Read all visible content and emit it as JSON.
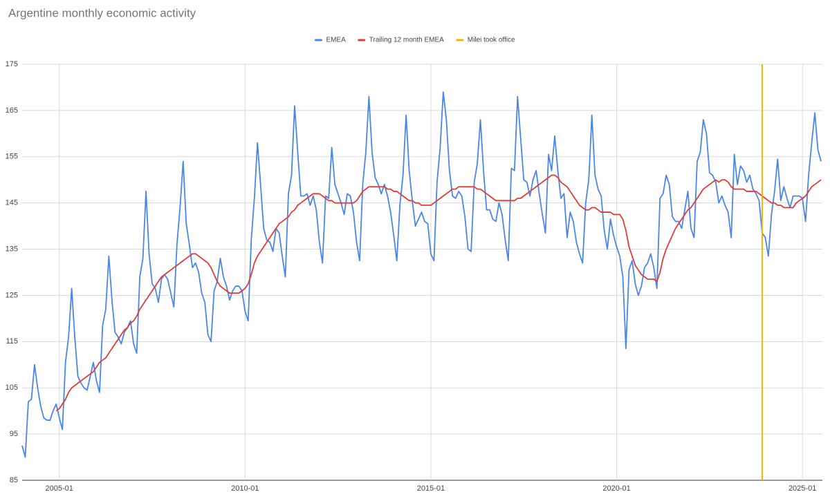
{
  "chart_data": {
    "type": "line",
    "title": "Argentine monthly economic activity",
    "x": [
      "2004-01",
      "2004-02",
      "2004-03",
      "2004-04",
      "2004-05",
      "2004-06",
      "2004-07",
      "2004-08",
      "2004-09",
      "2004-10",
      "2004-11",
      "2004-12",
      "2005-01",
      "2005-02",
      "2005-03",
      "2005-04",
      "2005-05",
      "2005-06",
      "2005-07",
      "2005-08",
      "2005-09",
      "2005-10",
      "2005-11",
      "2005-12",
      "2006-01",
      "2006-02",
      "2006-03",
      "2006-04",
      "2006-05",
      "2006-06",
      "2006-07",
      "2006-08",
      "2006-09",
      "2006-10",
      "2006-11",
      "2006-12",
      "2007-01",
      "2007-02",
      "2007-03",
      "2007-04",
      "2007-05",
      "2007-06",
      "2007-07",
      "2007-08",
      "2007-09",
      "2007-10",
      "2007-11",
      "2007-12",
      "2008-01",
      "2008-02",
      "2008-03",
      "2008-04",
      "2008-05",
      "2008-06",
      "2008-07",
      "2008-08",
      "2008-09",
      "2008-10",
      "2008-11",
      "2008-12",
      "2009-01",
      "2009-02",
      "2009-03",
      "2009-04",
      "2009-05",
      "2009-06",
      "2009-07",
      "2009-08",
      "2009-09",
      "2009-10",
      "2009-11",
      "2009-12",
      "2010-01",
      "2010-02",
      "2010-03",
      "2010-04",
      "2010-05",
      "2010-06",
      "2010-07",
      "2010-08",
      "2010-09",
      "2010-10",
      "2010-11",
      "2010-12",
      "2011-01",
      "2011-02",
      "2011-03",
      "2011-04",
      "2011-05",
      "2011-06",
      "2011-07",
      "2011-08",
      "2011-09",
      "2011-10",
      "2011-11",
      "2011-12",
      "2012-01",
      "2012-02",
      "2012-03",
      "2012-04",
      "2012-05",
      "2012-06",
      "2012-07",
      "2012-08",
      "2012-09",
      "2012-10",
      "2012-11",
      "2012-12",
      "2013-01",
      "2013-02",
      "2013-03",
      "2013-04",
      "2013-05",
      "2013-06",
      "2013-07",
      "2013-08",
      "2013-09",
      "2013-10",
      "2013-11",
      "2013-12",
      "2014-01",
      "2014-02",
      "2014-03",
      "2014-04",
      "2014-05",
      "2014-06",
      "2014-07",
      "2014-08",
      "2014-09",
      "2014-10",
      "2014-11",
      "2014-12",
      "2015-01",
      "2015-02",
      "2015-03",
      "2015-04",
      "2015-05",
      "2015-06",
      "2015-07",
      "2015-08",
      "2015-09",
      "2015-10",
      "2015-11",
      "2015-12",
      "2016-01",
      "2016-02",
      "2016-03",
      "2016-04",
      "2016-05",
      "2016-06",
      "2016-07",
      "2016-08",
      "2016-09",
      "2016-10",
      "2016-11",
      "2016-12",
      "2017-01",
      "2017-02",
      "2017-03",
      "2017-04",
      "2017-05",
      "2017-06",
      "2017-07",
      "2017-08",
      "2017-09",
      "2017-10",
      "2017-11",
      "2017-12",
      "2018-01",
      "2018-02",
      "2018-03",
      "2018-04",
      "2018-05",
      "2018-06",
      "2018-07",
      "2018-08",
      "2018-09",
      "2018-10",
      "2018-11",
      "2018-12",
      "2019-01",
      "2019-02",
      "2019-03",
      "2019-04",
      "2019-05",
      "2019-06",
      "2019-07",
      "2019-08",
      "2019-09",
      "2019-10",
      "2019-11",
      "2019-12",
      "2020-01",
      "2020-02",
      "2020-03",
      "2020-04",
      "2020-05",
      "2020-06",
      "2020-07",
      "2020-08",
      "2020-09",
      "2020-10",
      "2020-11",
      "2020-12",
      "2021-01",
      "2021-02",
      "2021-03",
      "2021-04",
      "2021-05",
      "2021-06",
      "2021-07",
      "2021-08",
      "2021-09",
      "2021-10",
      "2021-11",
      "2021-12",
      "2022-01",
      "2022-02",
      "2022-03",
      "2022-04",
      "2022-05",
      "2022-06",
      "2022-07",
      "2022-08",
      "2022-09",
      "2022-10",
      "2022-11",
      "2022-12",
      "2023-01",
      "2023-02",
      "2023-03",
      "2023-04",
      "2023-05",
      "2023-06",
      "2023-07",
      "2023-08",
      "2023-09",
      "2023-10",
      "2023-11",
      "2023-12",
      "2024-01",
      "2024-02",
      "2024-03",
      "2024-04",
      "2024-05",
      "2024-06",
      "2024-07",
      "2024-08",
      "2024-09",
      "2024-10",
      "2024-11",
      "2024-12",
      "2025-01",
      "2025-02",
      "2025-03",
      "2025-04",
      "2025-05",
      "2025-06",
      "2025-07"
    ],
    "series": [
      {
        "name": "EMEA",
        "color": "#4a86e8",
        "values": [
          92.5,
          90,
          102,
          102.5,
          110,
          105,
          101,
          98.5,
          98,
          98,
          100,
          101.5,
          98.5,
          96,
          110.5,
          116,
          126.5,
          116,
          107.5,
          106,
          105,
          104.5,
          107.5,
          110.5,
          106.5,
          104,
          118.5,
          122,
          133.5,
          124,
          117,
          116,
          114.5,
          117,
          118,
          119.5,
          114.5,
          112.5,
          129,
          133,
          147.5,
          134,
          127.5,
          126.5,
          123.5,
          128.5,
          129.5,
          128.5,
          125.5,
          122.5,
          136,
          144,
          154,
          140.5,
          136,
          131,
          132,
          130,
          125.5,
          123.5,
          116.5,
          115,
          126,
          128,
          133,
          129,
          127,
          124,
          126,
          127,
          127,
          126,
          121.5,
          119.5,
          137,
          146,
          158,
          149,
          139.5,
          137,
          136.5,
          134.5,
          139.5,
          138.5,
          133.5,
          129,
          147,
          151,
          166,
          156,
          146.5,
          146.5,
          147,
          144.5,
          146.5,
          143.5,
          136.5,
          132,
          146.5,
          146,
          157,
          149,
          147,
          145,
          142.5,
          147,
          146.5,
          143,
          136.5,
          132.5,
          149,
          156,
          168,
          156,
          150.5,
          149,
          147,
          149,
          146.5,
          143,
          138,
          132.5,
          144.5,
          151,
          164,
          152,
          145.5,
          140,
          141.5,
          143,
          141,
          140.5,
          134,
          132.5,
          149.5,
          157,
          169,
          163,
          152,
          146.5,
          146,
          147.5,
          146.5,
          142,
          135,
          134.5,
          149.5,
          153.5,
          163,
          152,
          143.5,
          143.5,
          141.5,
          141,
          145,
          142.5,
          137,
          132.5,
          152.5,
          152,
          168,
          159,
          150,
          149.5,
          146.5,
          150,
          152,
          147,
          142.5,
          138.5,
          155.5,
          152,
          159.5,
          152,
          146,
          147,
          137.5,
          143,
          141,
          136.5,
          134,
          132,
          145,
          150,
          164,
          151,
          148,
          146.5,
          139,
          135,
          141.5,
          138,
          135.5,
          133.5,
          129,
          113.5,
          130.5,
          132.5,
          127.5,
          125,
          127,
          131,
          132,
          134,
          131,
          126.5,
          146,
          147,
          151,
          149,
          142,
          141,
          141,
          139.5,
          143.5,
          147.5,
          139.5,
          137.5,
          154,
          156,
          163,
          160,
          151.5,
          151,
          149.5,
          145,
          146.5,
          144.5,
          143,
          137.5,
          155.5,
          149,
          153,
          152,
          149.5,
          151,
          148,
          147,
          145.5,
          138.5,
          137.5,
          133.5,
          142.5,
          147.5,
          154.5,
          145.5,
          148.5,
          146,
          144,
          146.5,
          146.5,
          146.5,
          146,
          141,
          151,
          158,
          164.5,
          156.5,
          154
        ]
      },
      {
        "name": "Trailing 12 month EMEA",
        "color": "#e53935",
        "values": [
          null,
          null,
          null,
          null,
          null,
          null,
          null,
          null,
          null,
          null,
          null,
          100,
          100.5,
          101.5,
          102.5,
          104,
          105,
          105.5,
          106,
          106.5,
          107,
          107.5,
          108,
          108.5,
          109.5,
          110.5,
          111,
          111.5,
          112.5,
          113.5,
          114.5,
          115.5,
          116.5,
          117.5,
          118,
          119,
          119.5,
          120.5,
          122,
          123,
          124,
          125,
          126,
          127,
          128,
          129,
          129.5,
          130,
          130.5,
          131,
          131.5,
          132,
          132.5,
          133,
          133.5,
          134,
          134,
          133.5,
          133,
          132.5,
          132,
          131,
          129.5,
          128,
          127,
          126.5,
          126,
          125.5,
          125.5,
          125.5,
          125.5,
          126,
          126.5,
          127.5,
          129.5,
          132,
          133.5,
          134.5,
          135.5,
          136.5,
          137.5,
          138.5,
          139.5,
          140.5,
          141,
          141.5,
          142,
          143,
          143.5,
          144.5,
          145,
          145.5,
          146,
          146.5,
          147,
          147,
          147,
          146.5,
          146,
          145.5,
          145.5,
          145,
          145,
          145,
          145,
          145,
          145,
          145,
          145.5,
          146.5,
          147.5,
          148,
          148.5,
          148.5,
          148.5,
          148.5,
          148.5,
          148.5,
          148,
          148,
          147.5,
          147.5,
          147,
          146.5,
          146,
          145.5,
          145.5,
          145,
          145,
          144.5,
          144.5,
          144.5,
          144.5,
          145,
          145.5,
          146,
          146.5,
          147,
          147.5,
          148,
          148,
          148.5,
          148.5,
          148.5,
          148.5,
          148.5,
          148.5,
          148,
          148,
          147.5,
          147,
          146.5,
          146,
          145.5,
          145.5,
          145.5,
          145.5,
          145.5,
          145.5,
          145.5,
          146,
          146,
          146.5,
          147,
          147.5,
          148,
          148.5,
          149,
          149.5,
          150,
          150.5,
          151,
          151,
          150.5,
          149.5,
          149,
          148.5,
          147.5,
          146.5,
          145.5,
          144.5,
          144,
          143.5,
          143.5,
          144,
          144,
          143.5,
          143,
          143,
          143,
          143,
          142.5,
          142.5,
          142.5,
          141.5,
          139,
          135.5,
          133.5,
          131.5,
          130.5,
          129.5,
          129,
          128.5,
          128.5,
          128.5,
          128,
          130,
          133,
          135,
          136.5,
          138,
          139.5,
          140.5,
          141.5,
          142.5,
          143.5,
          144,
          145,
          146,
          147,
          148,
          148.5,
          149,
          149.5,
          150,
          149.5,
          150,
          150,
          149.5,
          148.5,
          148,
          148,
          148,
          148,
          147.5,
          147.5,
          147.5,
          147.5,
          147,
          146.5,
          146,
          145.5,
          145,
          145,
          144.5,
          144.5,
          144,
          144,
          144,
          144,
          145,
          145.5,
          146,
          146.5,
          147.5,
          148.5,
          149,
          149.5,
          150
        ]
      }
    ],
    "vline": {
      "name": "Milei took office",
      "color": "#f4b400",
      "x": "2023-12"
    },
    "xticks": [
      "2005-01",
      "2010-01",
      "2015-01",
      "2020-01",
      "2025-01"
    ],
    "ylim": [
      85,
      175
    ],
    "yticks": [
      85,
      95,
      105,
      115,
      125,
      135,
      145,
      155,
      165,
      175
    ],
    "grid": true,
    "legend": "top"
  }
}
